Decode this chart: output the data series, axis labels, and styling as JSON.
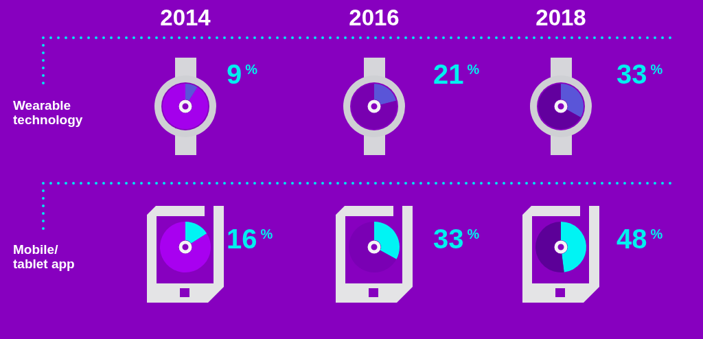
{
  "chart_data": [
    {
      "type": "donut",
      "title": "2014",
      "ylabel": "Wearable technology",
      "categories": [
        null,
        null
      ],
      "values": [
        9,
        91
      ],
      "colors": [
        "#5a55d8",
        "#a400ec"
      ],
      "value_labels": [
        "9$^{%}$",
        null
      ]
    },
    {
      "type": "donut",
      "title": "2016",
      "categories": [
        null,
        null
      ],
      "values": [
        21,
        79
      ],
      "colors": [
        "#5a55d8",
        "#7800b0"
      ],
      "value_labels": [
        "21$^{%}$",
        null
      ]
    },
    {
      "type": "donut",
      "title": "2018",
      "categories": [
        null,
        null
      ],
      "values": [
        33,
        67
      ],
      "colors": [
        "#5a55d8",
        "#62009e"
      ],
      "value_labels": [
        "33$^{%}$",
        null
      ]
    },
    {
      "type": "donut",
      "ylabel": "Mobile/tablet app",
      "categories": [
        null,
        null
      ],
      "values": [
        16,
        84
      ],
      "colors": [
        "#00f4f4",
        "#a800f0"
      ],
      "value_labels": [
        "16$^{%}$",
        null
      ]
    },
    {
      "type": "donut",
      "categories": [
        null,
        null
      ],
      "values": [
        33,
        67
      ],
      "colors": [
        "#00f4f4",
        "#7a00b4"
      ],
      "value_labels": [
        "33$^{%}$",
        null
      ]
    },
    {
      "type": "donut",
      "categories": [
        null,
        null
      ],
      "values": [
        48,
        52
      ],
      "colors": [
        "#00f4f4",
        "#5c0098"
      ],
      "value_labels": [
        "48$^{%}$",
        null
      ]
    }
  ]
}
